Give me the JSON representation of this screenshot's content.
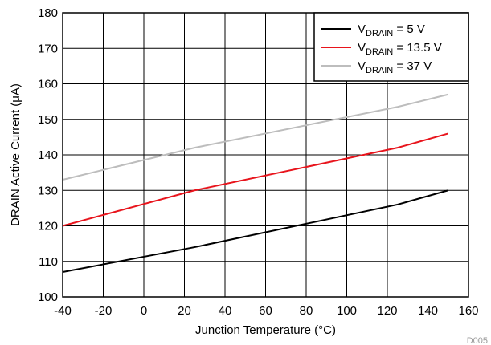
{
  "chart_data": {
    "type": "line",
    "xlabel": "Junction Temperature (°C)",
    "ylabel": "DRAIN Active Current (μA)",
    "xlim": [
      -40,
      160
    ],
    "ylim": [
      100,
      180
    ],
    "x_ticks": [
      -40,
      -20,
      0,
      20,
      40,
      60,
      80,
      100,
      120,
      140,
      160
    ],
    "y_ticks": [
      100,
      110,
      120,
      130,
      140,
      150,
      160,
      170,
      180
    ],
    "grid": true,
    "legend_position": "top-right",
    "corner_label": "D005",
    "series": [
      {
        "name_main": "V",
        "name_sub": "DRAIN",
        "name_rest": " = 5 V",
        "color": "#000000",
        "x": [
          -40,
          25,
          125,
          150
        ],
        "values": [
          107,
          114,
          126,
          130
        ]
      },
      {
        "name_main": "V",
        "name_sub": "DRAIN",
        "name_rest": " = 13.5 V",
        "color": "#e8141c",
        "x": [
          -40,
          25,
          125,
          150
        ],
        "values": [
          120,
          130,
          142,
          146
        ]
      },
      {
        "name_main": "V",
        "name_sub": "DRAIN",
        "name_rest": " = 37 V",
        "color": "#bdbdbd",
        "x": [
          -40,
          25,
          125,
          150
        ],
        "values": [
          133,
          142,
          153.5,
          157
        ]
      }
    ]
  }
}
